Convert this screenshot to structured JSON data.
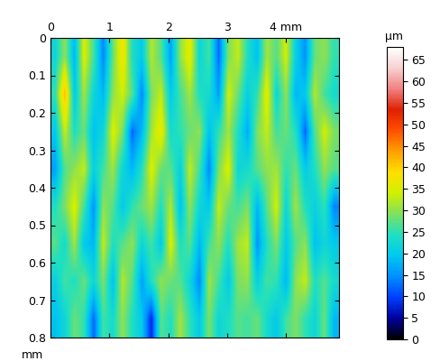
{
  "chart_data": {
    "type": "heatmap",
    "y_label": "mm",
    "xlim": [
      0,
      4.9
    ],
    "xticks": [
      0,
      1,
      2,
      3,
      {
        "value": 4,
        "label": "4 mm"
      }
    ],
    "ylim": [
      0.8,
      0
    ],
    "yticks": [
      0,
      0.1,
      0.2,
      0.3,
      0.4,
      0.5,
      0.6,
      0.7,
      0.8
    ],
    "colorbar_label": "µm",
    "colorbar_range": [
      0,
      68
    ],
    "colorbar_ticks": [
      0,
      5,
      10,
      15,
      20,
      25,
      30,
      35,
      40,
      45,
      50,
      55,
      60,
      65
    ],
    "cells": [
      [
        22,
        30,
        18,
        35,
        26,
        14,
        28,
        38,
        24,
        20,
        32,
        27,
        16,
        30,
        36,
        22,
        26,
        12,
        29,
        33,
        24,
        19,
        31,
        27,
        34,
        21,
        15,
        28,
        30,
        25
      ],
      [
        25,
        42,
        20,
        31,
        22,
        18,
        30,
        34,
        27,
        14,
        29,
        33,
        20,
        26,
        31,
        24,
        23,
        16,
        34,
        28,
        21,
        25,
        36,
        22,
        30,
        18,
        20,
        32,
        26,
        23
      ],
      [
        20,
        33,
        24,
        28,
        19,
        22,
        35,
        29,
        12,
        18,
        31,
        37,
        23,
        25,
        28,
        30,
        19,
        25,
        31,
        24,
        17,
        29,
        33,
        26,
        28,
        24,
        12,
        27,
        34,
        29
      ],
      [
        16,
        27,
        30,
        33,
        21,
        26,
        31,
        22,
        18,
        24,
        35,
        28,
        27,
        21,
        33,
        26,
        14,
        29,
        35,
        22,
        23,
        27,
        30,
        31,
        25,
        28,
        20,
        24,
        30,
        27
      ],
      [
        24,
        29,
        35,
        26,
        15,
        30,
        27,
        20,
        25,
        28,
        31,
        24,
        32,
        19,
        30,
        22,
        20,
        33,
        28,
        26,
        29,
        18,
        27,
        34,
        22,
        31,
        24,
        21,
        25,
        14
      ],
      [
        27,
        23,
        31,
        20,
        18,
        33,
        24,
        27,
        30,
        22,
        26,
        20,
        35,
        24,
        27,
        18,
        26,
        30,
        24,
        31,
        33,
        15,
        24,
        29,
        20,
        27,
        30,
        19,
        22,
        20
      ],
      [
        21,
        26,
        24,
        28,
        22,
        29,
        19,
        32,
        27,
        16,
        24,
        30,
        28,
        27,
        22,
        14,
        31,
        26,
        20,
        29,
        30,
        21,
        26,
        25,
        18,
        30,
        33,
        24,
        27,
        23
      ],
      [
        19,
        22,
        28,
        25,
        12,
        26,
        23,
        30,
        24,
        20,
        8,
        27,
        24,
        31,
        25,
        20,
        29,
        22,
        24,
        27,
        26,
        28,
        23,
        20,
        26,
        29,
        25,
        22,
        28,
        18
      ]
    ]
  }
}
